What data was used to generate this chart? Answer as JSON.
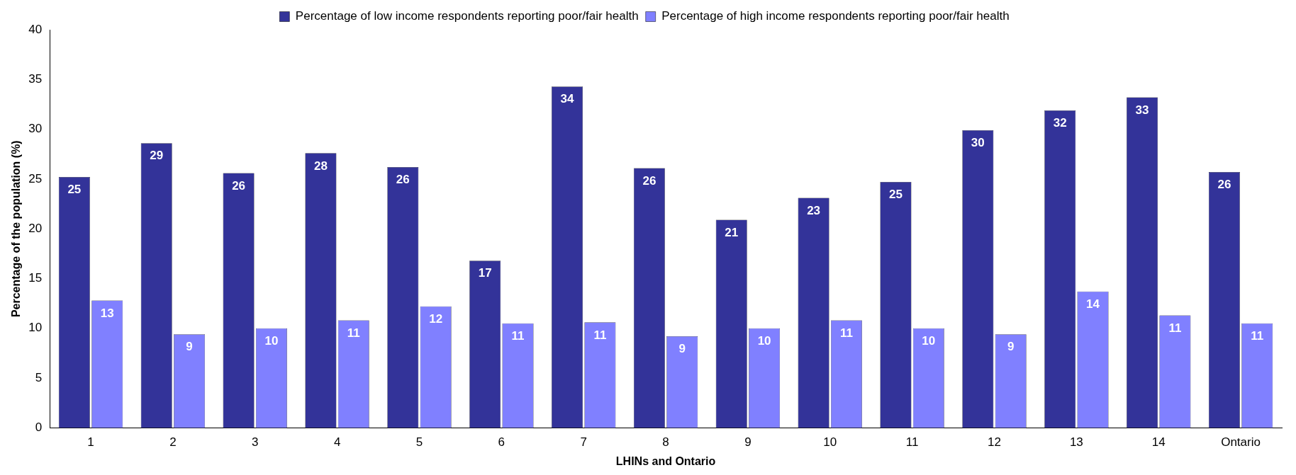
{
  "chart_data": {
    "type": "bar",
    "xlabel": "LHINs and Ontario",
    "ylabel": "Percentage of the population (%)",
    "categories": [
      "1",
      "2",
      "3",
      "4",
      "5",
      "6",
      "7",
      "8",
      "9",
      "10",
      "11",
      "12",
      "13",
      "14",
      "Ontario"
    ],
    "series": [
      {
        "name": "Percentage of low income respondents reporting poor/fair health",
        "color": "#333399",
        "values": [
          25.2,
          28.6,
          25.6,
          27.6,
          26.2,
          16.8,
          34.3,
          26.1,
          20.9,
          23.1,
          24.7,
          29.9,
          31.9,
          33.2,
          25.7
        ],
        "value_labels": [
          "25",
          "29",
          "26",
          "28",
          "26",
          "17",
          "34",
          "26",
          "21",
          "23",
          "25",
          "30",
          "32",
          "33",
          "26"
        ]
      },
      {
        "name": "Percentage of high income respondents reporting poor/fair health",
        "color": "#8080ff",
        "values": [
          12.8,
          9.4,
          10.0,
          10.8,
          12.2,
          10.5,
          10.6,
          9.2,
          10.0,
          10.8,
          10.0,
          9.4,
          13.7,
          11.3,
          10.5
        ],
        "value_labels": [
          "13",
          "9",
          "10",
          "11",
          "12",
          "11",
          "11",
          "9",
          "10",
          "11",
          "10",
          "9",
          "14",
          "11",
          "11"
        ]
      }
    ],
    "ylim": [
      0,
      40
    ],
    "yticks": [
      0,
      5,
      10,
      15,
      20,
      25,
      30,
      35,
      40
    ],
    "grid": false,
    "legend": "top"
  }
}
